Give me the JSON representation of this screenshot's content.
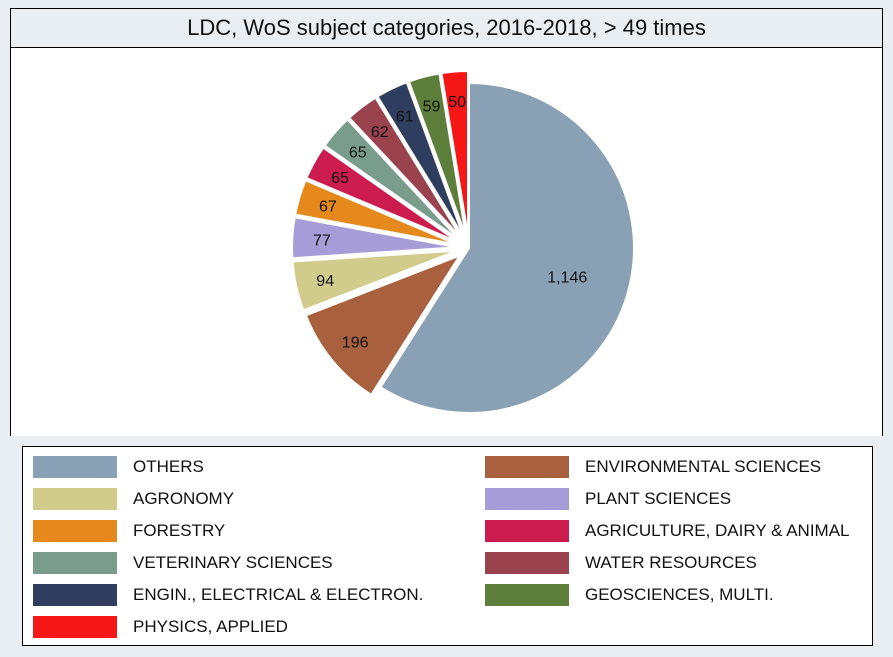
{
  "chart_data": {
    "type": "pie",
    "title": "LDC, WoS subject categories, 2016-2018, > 49 times",
    "exploded": true,
    "legend_position": "bottom",
    "slices": [
      {
        "label": "OTHERS",
        "value": 1146,
        "value_label": "1,146",
        "color": "#8aa0b5"
      },
      {
        "label": "ENVIRONMENTAL SCIENCES",
        "value": 196,
        "value_label": "196",
        "color": "#a8603e"
      },
      {
        "label": "AGRONOMY",
        "value": 94,
        "value_label": "94",
        "color": "#d2cc8c"
      },
      {
        "label": "PLANT SCIENCES",
        "value": 77,
        "value_label": "77",
        "color": "#a59cd8"
      },
      {
        "label": "FORESTRY",
        "value": 67,
        "value_label": "67",
        "color": "#e5891d"
      },
      {
        "label": "AGRICULTURE, DAIRY & ANIMAL",
        "value": 65,
        "value_label": "65",
        "color": "#cc1b4e"
      },
      {
        "label": "VETERINARY SCIENCES",
        "value": 65,
        "value_label": "65",
        "color": "#7a9c8c"
      },
      {
        "label": "WATER RESOURCES",
        "value": 62,
        "value_label": "62",
        "color": "#9a434f"
      },
      {
        "label": "ENGIN., ELECTRICAL & ELECTRON.",
        "value": 61,
        "value_label": "61",
        "color": "#2f3e5e"
      },
      {
        "label": "GEOSCIENCES, MULTI.",
        "value": 59,
        "value_label": "59",
        "color": "#5e7f3b"
      },
      {
        "label": "PHYSICS, APPLIED",
        "value": 50,
        "value_label": "50",
        "color": "#f51616"
      }
    ]
  }
}
